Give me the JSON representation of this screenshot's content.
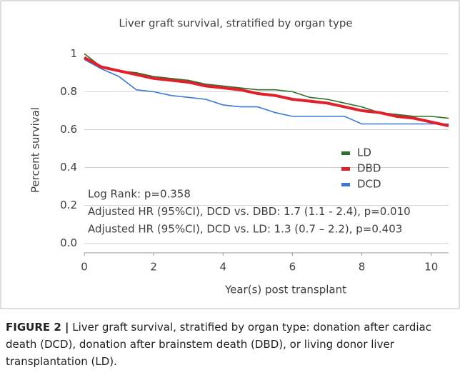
{
  "chart_data": {
    "type": "line",
    "title": "Liver graft survival, stratified by organ type",
    "xlabel": "Year(s) post transplant",
    "ylabel": "Percent survival",
    "x": [
      0,
      0.5,
      1,
      1.5,
      2,
      2.5,
      3,
      3.5,
      4,
      4.5,
      5,
      5.5,
      6,
      6.5,
      7,
      7.5,
      8,
      8.5,
      9,
      9.5,
      10,
      10.5
    ],
    "series": [
      {
        "name": "LD",
        "color": "#2f6e2a",
        "values": [
          1,
          0.93,
          0.91,
          0.9,
          0.88,
          0.87,
          0.86,
          0.84,
          0.83,
          0.82,
          0.81,
          0.81,
          0.8,
          0.77,
          0.76,
          0.74,
          0.72,
          0.69,
          0.68,
          0.67,
          0.67,
          0.66
        ]
      },
      {
        "name": "DBD",
        "color": "#e0202a",
        "values": [
          0.98,
          0.93,
          0.91,
          0.89,
          0.87,
          0.86,
          0.85,
          0.83,
          0.82,
          0.81,
          0.79,
          0.78,
          0.76,
          0.75,
          0.74,
          0.72,
          0.7,
          0.69,
          0.67,
          0.66,
          0.64,
          0.62
        ]
      },
      {
        "name": "DCD",
        "color": "#3a78d4",
        "values": [
          0.97,
          0.92,
          0.88,
          0.81,
          0.8,
          0.78,
          0.77,
          0.76,
          0.73,
          0.72,
          0.72,
          0.69,
          0.67,
          0.67,
          0.67,
          0.67,
          0.63,
          0.63,
          0.63,
          0.63,
          0.63,
          0.63
        ]
      }
    ],
    "xlim": [
      0,
      10.5
    ],
    "xticks": [
      0,
      2,
      4,
      6,
      8,
      10
    ],
    "ylim": [
      -0.05,
      1.05
    ],
    "yticks": [
      {
        "value": 0,
        "label": "0.0"
      },
      0.2,
      0.4,
      0.6,
      0.8,
      1
    ],
    "grid": true,
    "legend": "right",
    "annotations": [
      "Log Rank: p=0.358",
      "Adjusted HR (95%CI), DCD vs. DBD: 1.7 (1.1 - 2.4), p=0.010",
      "Adjusted HR (95%CI), DCD vs. LD: 1.3 (0.7 – 2.2), p=0.403"
    ]
  },
  "figure": {
    "label": "FIGURE 2 |",
    "caption": "Liver graft survival, stratified by organ type: donation after cardiac death (DCD), donation after brainstem death (DBD), or living donor liver transplantation (LD)."
  }
}
